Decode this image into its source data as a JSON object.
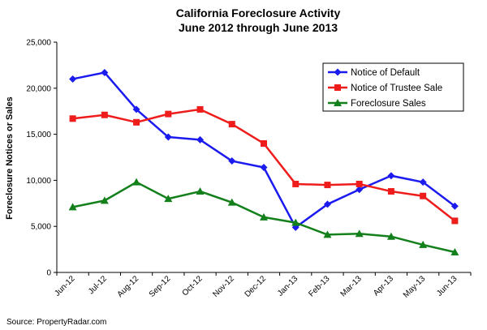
{
  "chart_data": {
    "type": "line",
    "title": "California Foreclosure Activity",
    "subtitle": "June 2012 through June 2013",
    "ylabel": "Foreclosure Notices or Sales",
    "xlabel": "",
    "ylim": [
      0,
      25000
    ],
    "yticks": [
      "0",
      "5,000",
      "10,000",
      "15,000",
      "20,000",
      "25,000"
    ],
    "categories": [
      "Jun-12",
      "Jul-12",
      "Aug-12",
      "Sep-12",
      "Oct-12",
      "Nov-12",
      "Dec-12",
      "Jan-13",
      "Feb-13",
      "Mar-13",
      "Apr-13",
      "May-13",
      "Jun-13"
    ],
    "grid": false,
    "legend_position": "top-right",
    "series": [
      {
        "name": "Notice of Default",
        "color": "#1b1bf0",
        "marker": "diamond",
        "values": [
          21000,
          21700,
          17700,
          14700,
          14400,
          12100,
          11400,
          4900,
          7400,
          9000,
          10500,
          9800,
          7200
        ]
      },
      {
        "name": "Notice of Trustee Sale",
        "color": "#ef1c1c",
        "marker": "square",
        "values": [
          16700,
          17100,
          16300,
          17200,
          17700,
          16100,
          14000,
          9600,
          9500,
          9600,
          8800,
          8300,
          5600
        ]
      },
      {
        "name": "Foreclosure Sales",
        "color": "#13801b",
        "marker": "triangle",
        "values": [
          7100,
          7800,
          9800,
          8000,
          8800,
          7600,
          6000,
          5400,
          4100,
          4200,
          3900,
          3000,
          2200
        ]
      }
    ]
  },
  "source": "Source: PropertyRadar.com"
}
